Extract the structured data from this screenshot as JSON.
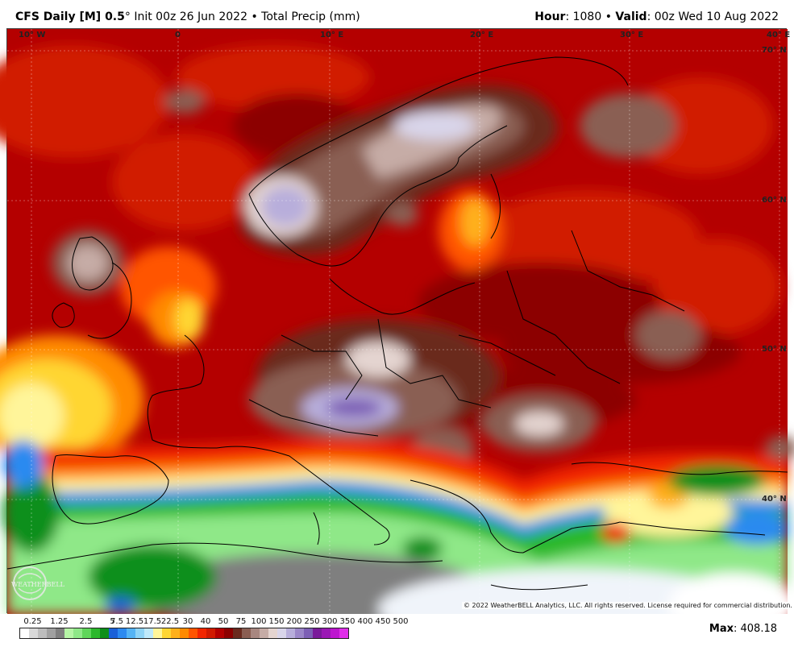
{
  "header": {
    "model": "CFS Daily [M] 0.5",
    "degree": "°",
    "init": "Init 00z 26 Jun 2022",
    "bullet": "•",
    "field": "Total Precip (mm)",
    "hour_label": "Hour",
    "hour_value": ": 1080",
    "valid_label": "Valid",
    "valid_value": ": 00z Wed 10 Aug 2022"
  },
  "map": {
    "lon_labels": [
      "10° W",
      "0",
      "10° E",
      "20° E",
      "30° E",
      "40° E"
    ],
    "lat_labels": [
      "70° N",
      "60° N",
      "50° N",
      "40° N"
    ],
    "copyright": "© 2022 WeatherBELL Analytics, LLC. All rights reserved. License required for commercial distribution.",
    "logo_text": "WEATHERBELL",
    "logo_icon": "weatherbell-logo-icon"
  },
  "colorbar": {
    "labels": [
      "0.25",
      "1.25",
      "2.5",
      "5",
      "7.5",
      "12.5",
      "17.5",
      "22.5",
      "30",
      "40",
      "50",
      "75",
      "100",
      "150",
      "200",
      "250",
      "300",
      "350",
      "400",
      "450",
      "500"
    ],
    "colors": [
      "#ffffff",
      "#d9d9d9",
      "#bdbdbd",
      "#a0a0a0",
      "#7f7f7f",
      "#b6f5a6",
      "#8fe888",
      "#5fd65a",
      "#2cb82c",
      "#0e8f1a",
      "#1a60d8",
      "#2c8af0",
      "#55b4f5",
      "#8fd4f7",
      "#bfe9fb",
      "#fff59a",
      "#ffd633",
      "#ffb01a",
      "#ff8a00",
      "#ff5500",
      "#f22600",
      "#d11a00",
      "#b40000",
      "#8c0000",
      "#6a2a1e",
      "#8a5e52",
      "#a88780",
      "#c6aca6",
      "#e4d4d0",
      "#d9d5ea",
      "#b8aedb",
      "#9b86c8",
      "#7d5fb5",
      "#7a1a9a",
      "#9b18b5",
      "#bd16cf",
      "#e02de9"
    ]
  },
  "stats": {
    "max_label": "Max",
    "max_value": ": 408.18"
  }
}
